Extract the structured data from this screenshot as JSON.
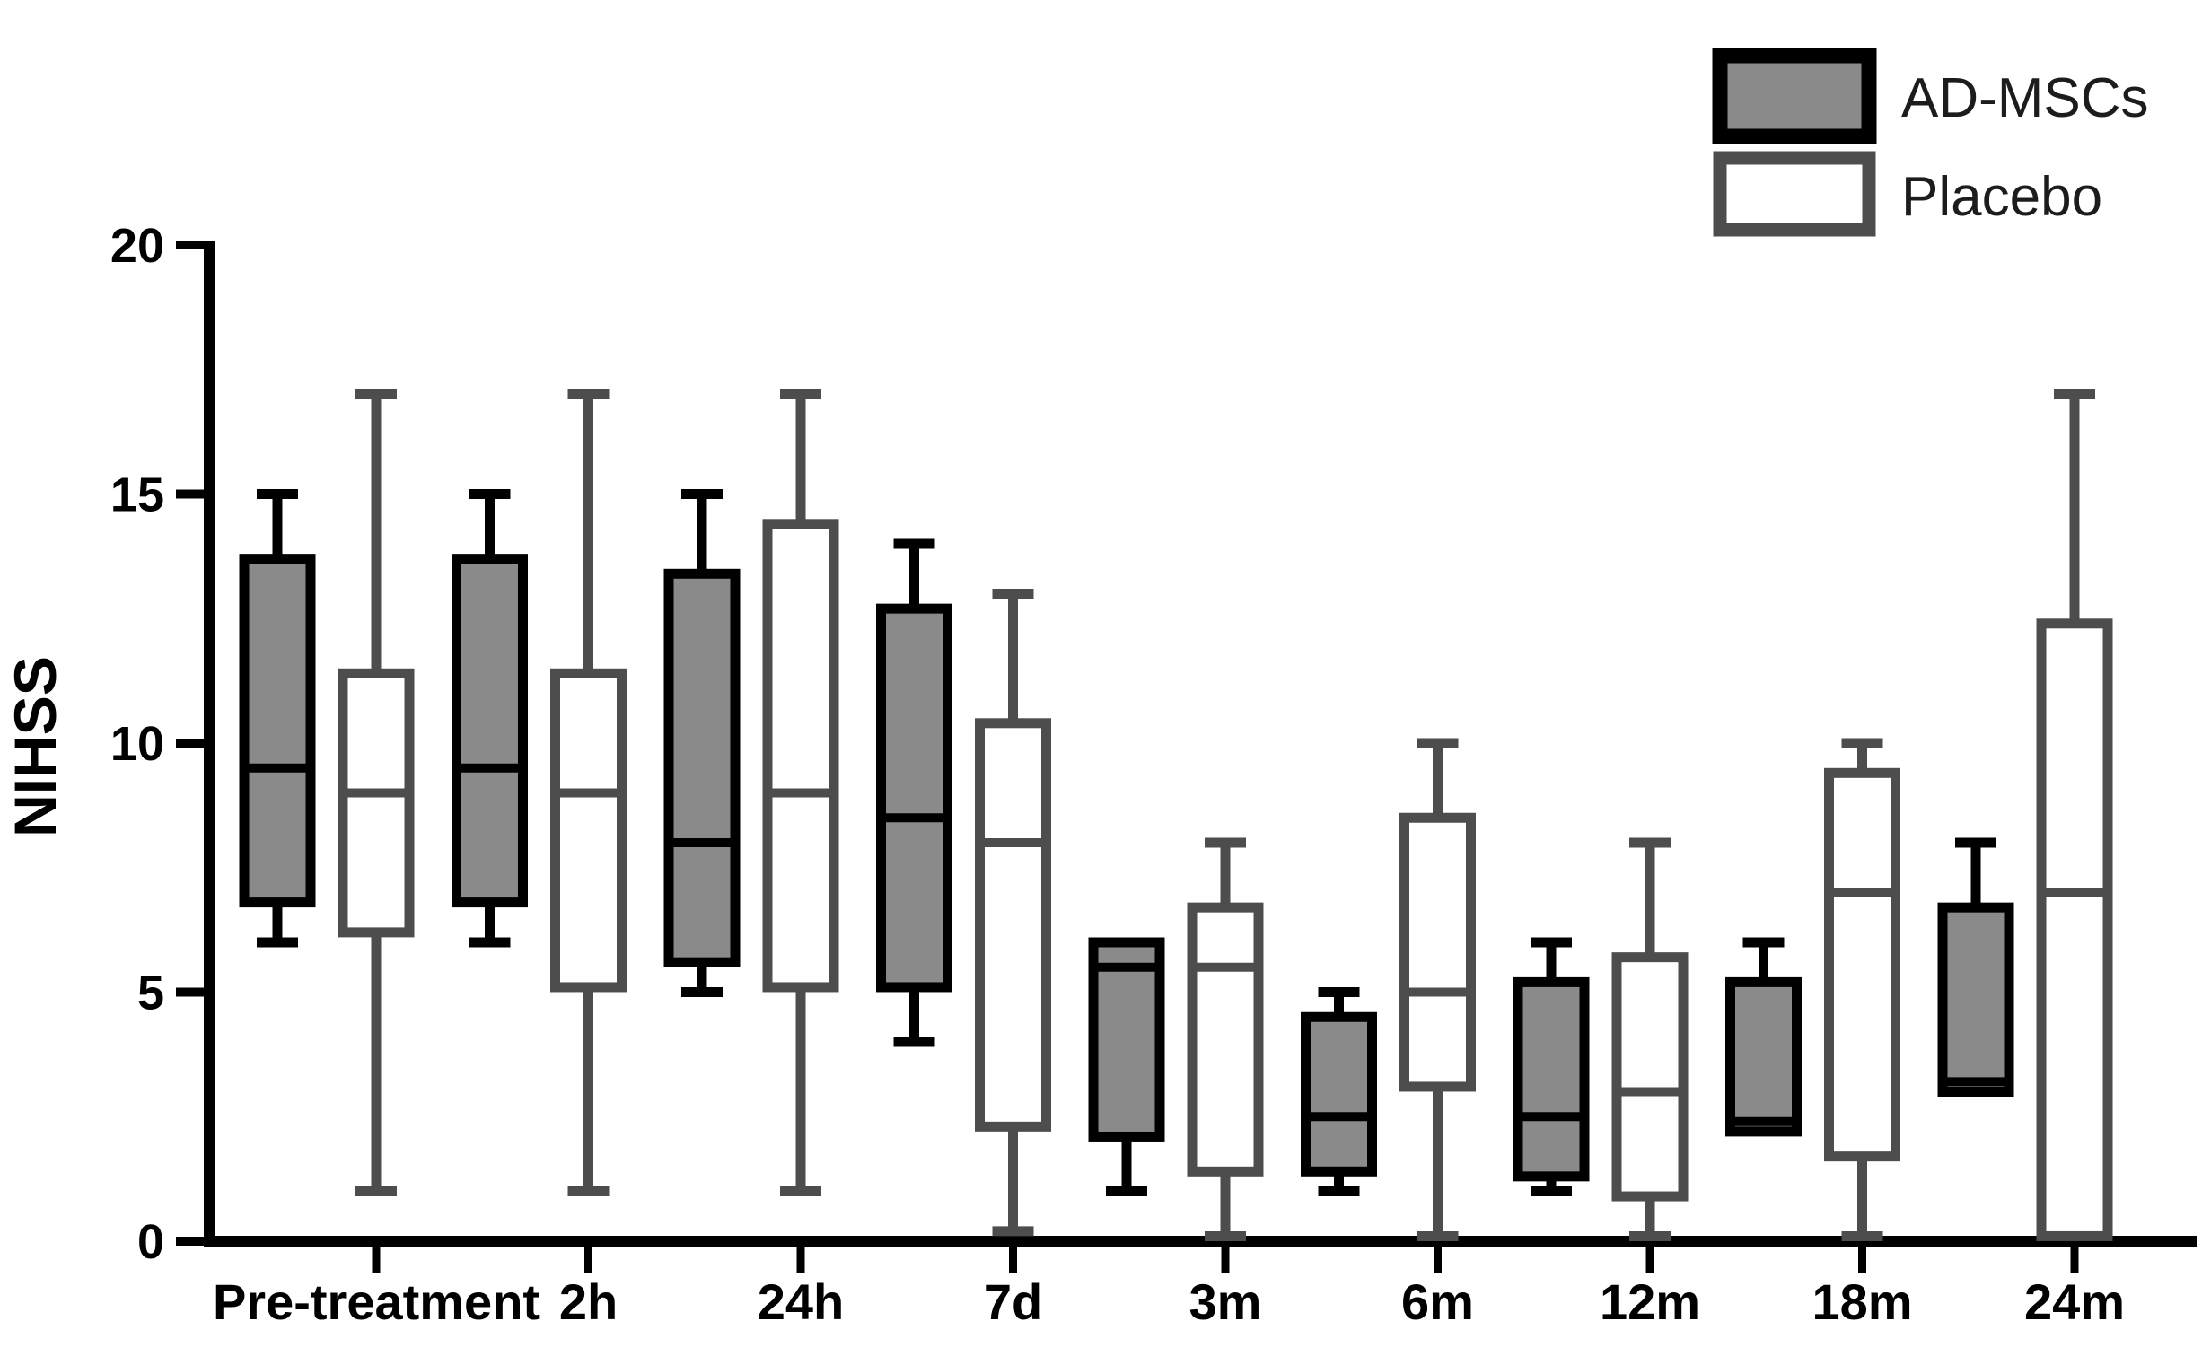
{
  "figure": {
    "y_axis_title": "NIHSS",
    "legend": {
      "position": "top-right",
      "items": [
        {
          "label": "AD-MSCs",
          "fill": "#8a8a8a",
          "border": "#000000"
        },
        {
          "label": "Placebo",
          "fill": "#ffffff",
          "border": "#4d4d4d"
        }
      ]
    }
  },
  "chart_data": {
    "type": "box",
    "title": "",
    "xlabel": "",
    "ylabel": "NIHSS",
    "ylim": [
      0,
      20
    ],
    "yticks": [
      0,
      5,
      10,
      15,
      20
    ],
    "grid": false,
    "legend_position": "top-right",
    "categories": [
      "Pre-treatment",
      "2h",
      "24h",
      "7d",
      "3m",
      "6m",
      "12m",
      "18m",
      "24m"
    ],
    "series": [
      {
        "name": "AD-MSCs",
        "fill": "#8a8a8a",
        "stroke": "#000000",
        "boxes": [
          {
            "min": 6,
            "q1": 6.8,
            "median": 9.5,
            "q3": 13.7,
            "max": 15
          },
          {
            "min": 6,
            "q1": 6.8,
            "median": 9.5,
            "q3": 13.7,
            "max": 15
          },
          {
            "min": 5,
            "q1": 5.6,
            "median": 8,
            "q3": 13.4,
            "max": 15
          },
          {
            "min": 4,
            "q1": 5.1,
            "median": 8.5,
            "q3": 12.7,
            "max": 14
          },
          {
            "min": 1,
            "q1": 2.1,
            "median": 5.5,
            "q3": 6,
            "max": 6
          },
          {
            "min": 1,
            "q1": 1.4,
            "median": 2.5,
            "q3": 4.5,
            "max": 5
          },
          {
            "min": 1,
            "q1": 1.3,
            "median": 2.5,
            "q3": 5.2,
            "max": 6
          },
          {
            "min": 2.2,
            "q1": 2.2,
            "median": 2.4,
            "q3": 5.2,
            "max": 6
          },
          {
            "min": 3,
            "q1": 3,
            "median": 3.2,
            "q3": 6.7,
            "max": 8
          }
        ]
      },
      {
        "name": "Placebo",
        "fill": "#ffffff",
        "stroke": "#4d4d4d",
        "boxes": [
          {
            "min": 1,
            "q1": 6.2,
            "median": 9,
            "q3": 11.4,
            "max": 17
          },
          {
            "min": 1,
            "q1": 5.1,
            "median": 9,
            "q3": 11.4,
            "max": 17
          },
          {
            "min": 1,
            "q1": 5.1,
            "median": 9,
            "q3": 14.4,
            "max": 17
          },
          {
            "min": 0.2,
            "q1": 2.3,
            "median": 8,
            "q3": 10.4,
            "max": 13
          },
          {
            "min": 0.1,
            "q1": 1.4,
            "median": 5.5,
            "q3": 6.7,
            "max": 8
          },
          {
            "min": 0.1,
            "q1": 3.1,
            "median": 5,
            "q3": 8.5,
            "max": 10
          },
          {
            "min": 0.1,
            "q1": 0.9,
            "median": 3,
            "q3": 5.7,
            "max": 8
          },
          {
            "min": 0.1,
            "q1": 1.7,
            "median": 7,
            "q3": 9.4,
            "max": 10
          },
          {
            "min": 0.1,
            "q1": 0.1,
            "median": 7,
            "q3": 12.4,
            "max": 17
          }
        ]
      }
    ]
  }
}
